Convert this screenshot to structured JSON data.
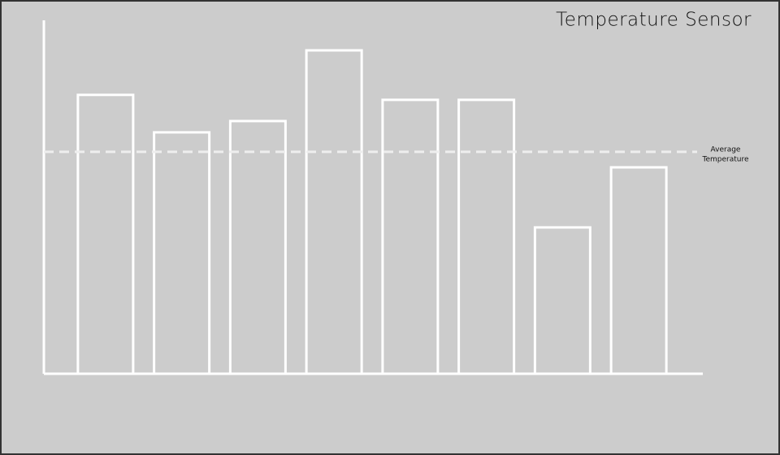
{
  "chart_data": {
    "type": "bar",
    "title": "Temperature Sensor",
    "categories": [
      null,
      null,
      null,
      null,
      null,
      null,
      null,
      null
    ],
    "values": [
      78.9,
      68.3,
      71.5,
      91.5,
      77.5,
      77.5,
      41.4,
      58.4
    ],
    "color": "#ffffff",
    "ylim": [
      0,
      100
    ],
    "reference_line": {
      "value": 62.8,
      "label": [
        "Average",
        "Temperature"
      ],
      "color": "#eeeeee",
      "dashed": true
    },
    "grid": false
  }
}
